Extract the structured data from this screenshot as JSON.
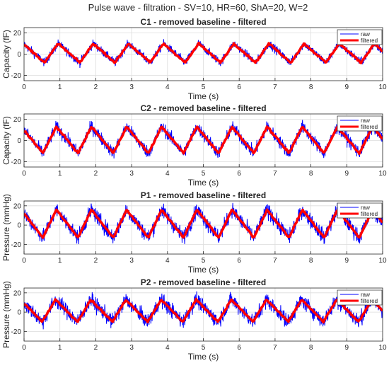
{
  "figure": {
    "suptitle": "Pulse wave - filtration - SV=10, HR=60, ShA=20, W=2"
  },
  "chart_data": [
    {
      "type": "line",
      "title": "C1 - removed baseline - filtered",
      "xlabel": "Time (s)",
      "ylabel": "Capacity (fF)",
      "xlim": [
        0,
        10
      ],
      "ylim": [
        -25,
        25
      ],
      "xticks": [
        "0",
        "1",
        "2",
        "3",
        "4",
        "5",
        "6",
        "7",
        "8",
        "9",
        "10"
      ],
      "yticks": [
        "20",
        "0",
        "-20"
      ],
      "grid": true,
      "legend_position": "top-right",
      "series": [
        {
          "name": "raw",
          "color": "#0000ff",
          "amplitude": 9,
          "noise": 4
        },
        {
          "name": "filtered",
          "color": "#ff0000",
          "amplitude": 9
        }
      ],
      "wave": {
        "peak_times": [
          0.95,
          1.93,
          2.91,
          3.89,
          4.87,
          5.85,
          6.83,
          7.81,
          8.79,
          9.77
        ],
        "trough_values": -8,
        "peak_values": 10
      }
    },
    {
      "type": "line",
      "title": "C2 - removed baseline - filtered",
      "xlabel": "Time (s)",
      "ylabel": "Capacity (fF)",
      "xlim": [
        0,
        10
      ],
      "ylim": [
        -25,
        25
      ],
      "xticks": [
        "0",
        "1",
        "2",
        "3",
        "4",
        "5",
        "6",
        "7",
        "8",
        "9",
        "10"
      ],
      "yticks": [
        "20",
        "0",
        "-20"
      ],
      "grid": true,
      "legend_position": "top-right",
      "series": [
        {
          "name": "raw",
          "color": "#0000ff",
          "amplitude": 13,
          "noise": 6
        },
        {
          "name": "filtered",
          "color": "#ff0000",
          "amplitude": 13
        }
      ],
      "wave": {
        "peak_times": [
          0.9,
          1.88,
          2.86,
          3.84,
          4.82,
          5.8,
          6.78,
          7.76,
          8.74,
          9.72
        ],
        "trough_values": -12,
        "peak_values": 13
      }
    },
    {
      "type": "line",
      "title": "P1 - removed baseline - filtered",
      "xlabel": "Time (s)",
      "ylabel": "Pressure (mmHg)",
      "xlim": [
        0,
        10
      ],
      "ylim": [
        -30,
        25
      ],
      "xticks": [
        "0",
        "1",
        "2",
        "3",
        "4",
        "5",
        "6",
        "7",
        "8",
        "9",
        "10"
      ],
      "yticks": [
        "20",
        "0",
        "-20"
      ],
      "grid": true,
      "legend_position": "top-right",
      "series": [
        {
          "name": "raw",
          "color": "#0000ff",
          "amplitude": 16,
          "noise": 8
        },
        {
          "name": "filtered",
          "color": "#ff0000",
          "amplitude": 16
        }
      ],
      "wave": {
        "peak_times": [
          0.9,
          1.88,
          2.86,
          3.84,
          4.82,
          5.8,
          6.78,
          7.76,
          8.74,
          9.72
        ],
        "trough_values": -13,
        "peak_values": 16
      }
    },
    {
      "type": "line",
      "title": "P2 - removed baseline - filtered",
      "xlabel": "Time (s)",
      "ylabel": "Pressure (mmHg)",
      "xlim": [
        0,
        10
      ],
      "ylim": [
        -30,
        25
      ],
      "xticks": [
        "0",
        "1",
        "2",
        "3",
        "4",
        "5",
        "6",
        "7",
        "8",
        "9",
        "10"
      ],
      "yticks": [
        "20",
        "0",
        "-20"
      ],
      "grid": true,
      "legend_position": "top-right",
      "series": [
        {
          "name": "raw",
          "color": "#0000ff",
          "amplitude": 13,
          "noise": 8
        },
        {
          "name": "filtered",
          "color": "#ff0000",
          "amplitude": 13
        }
      ],
      "wave": {
        "peak_times": [
          0.88,
          1.86,
          2.84,
          3.82,
          4.8,
          5.78,
          6.76,
          7.74,
          8.72,
          9.7
        ],
        "trough_values": -10,
        "peak_values": 13
      }
    }
  ]
}
